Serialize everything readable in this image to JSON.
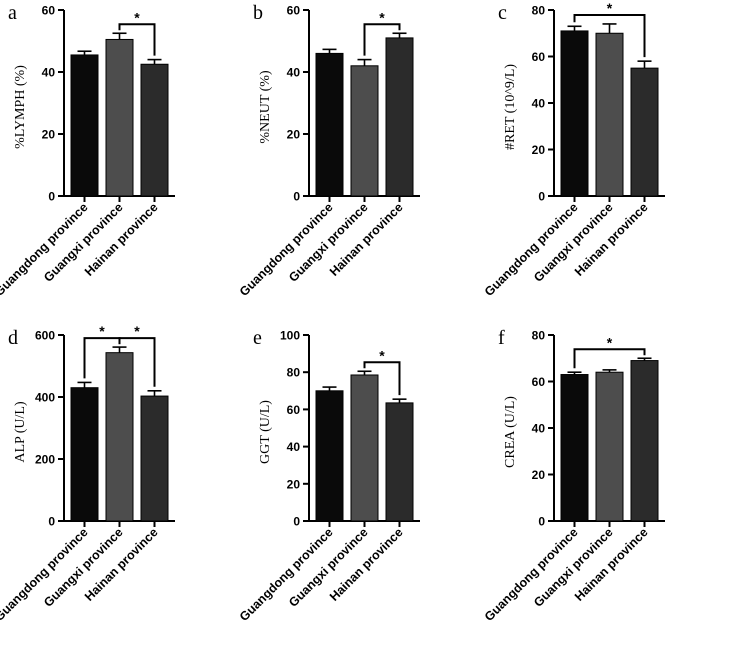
{
  "chart_data": [
    {
      "type": "bar",
      "panel": "a",
      "ylabel": "%LYMPH (%)",
      "categories": [
        "Guangdong province",
        "Guangxi province",
        "Hainan province"
      ],
      "values": [
        45.5,
        50.5,
        42.5
      ],
      "errors": [
        1.2,
        2.0,
        1.5
      ],
      "ylim": [
        0,
        60
      ],
      "yticks": [
        0,
        20,
        40,
        60
      ],
      "colors": [
        "#0a0a0a",
        "#4d4d4d",
        "#2b2b2b"
      ],
      "significance": [
        {
          "from": 1,
          "to": 2,
          "label": "*"
        }
      ]
    },
    {
      "type": "bar",
      "panel": "b",
      "ylabel": "%NEUT (%)",
      "categories": [
        "Guangdong province",
        "Guangxi province",
        "Hainan province"
      ],
      "values": [
        46.0,
        42.0,
        51.0
      ],
      "errors": [
        1.3,
        2.0,
        1.5
      ],
      "ylim": [
        0,
        60
      ],
      "yticks": [
        0,
        20,
        40,
        60
      ],
      "colors": [
        "#0a0a0a",
        "#4d4d4d",
        "#2b2b2b"
      ],
      "significance": [
        {
          "from": 1,
          "to": 2,
          "label": "*"
        }
      ]
    },
    {
      "type": "bar",
      "panel": "c",
      "ylabel": "#RET (10^9/L)",
      "categories": [
        "Guangdong province",
        "Guangxi province",
        "Hainan province"
      ],
      "values": [
        71.0,
        70.0,
        55.0
      ],
      "errors": [
        2.0,
        4.0,
        3.0
      ],
      "ylim": [
        0,
        80
      ],
      "yticks": [
        0,
        20,
        40,
        60,
        80
      ],
      "colors": [
        "#0a0a0a",
        "#4d4d4d",
        "#2b2b2b"
      ],
      "significance": [
        {
          "from": 0,
          "to": 2,
          "label": "*"
        }
      ]
    },
    {
      "type": "bar",
      "panel": "d",
      "ylabel": "ALP (U/L)",
      "categories": [
        "Guangdong province",
        "Guangxi province",
        "Hainan province"
      ],
      "values": [
        430,
        543,
        403
      ],
      "errors": [
        17,
        18,
        17
      ],
      "ylim": [
        0,
        600
      ],
      "yticks": [
        0,
        200,
        400,
        600
      ],
      "colors": [
        "#0a0a0a",
        "#4d4d4d",
        "#2b2b2b"
      ],
      "significance": [
        {
          "from": 0,
          "to": 1,
          "label": "*"
        },
        {
          "from": 1,
          "to": 2,
          "label": "*"
        }
      ]
    },
    {
      "type": "bar",
      "panel": "e",
      "ylabel": "GGT (U/L)",
      "categories": [
        "Guangdong province",
        "Guangxi province",
        "Hainan province"
      ],
      "values": [
        70.0,
        78.5,
        63.5
      ],
      "errors": [
        2.0,
        2.0,
        2.0
      ],
      "ylim": [
        0,
        100
      ],
      "yticks": [
        0,
        20,
        40,
        60,
        80,
        100
      ],
      "colors": [
        "#0a0a0a",
        "#4d4d4d",
        "#2b2b2b"
      ],
      "significance": [
        {
          "from": 1,
          "to": 2,
          "label": "*"
        }
      ]
    },
    {
      "type": "bar",
      "panel": "f",
      "ylabel": "CREA (U/L)",
      "categories": [
        "Guangdong province",
        "Guangxi province",
        "Hainan province"
      ],
      "values": [
        63.0,
        64.0,
        69.0
      ],
      "errors": [
        1.0,
        1.0,
        1.0
      ],
      "ylim": [
        0,
        80
      ],
      "yticks": [
        0,
        20,
        40,
        60,
        80
      ],
      "colors": [
        "#0a0a0a",
        "#4d4d4d",
        "#2b2b2b"
      ],
      "significance": [
        {
          "from": 0,
          "to": 2,
          "label": "*"
        }
      ]
    }
  ]
}
